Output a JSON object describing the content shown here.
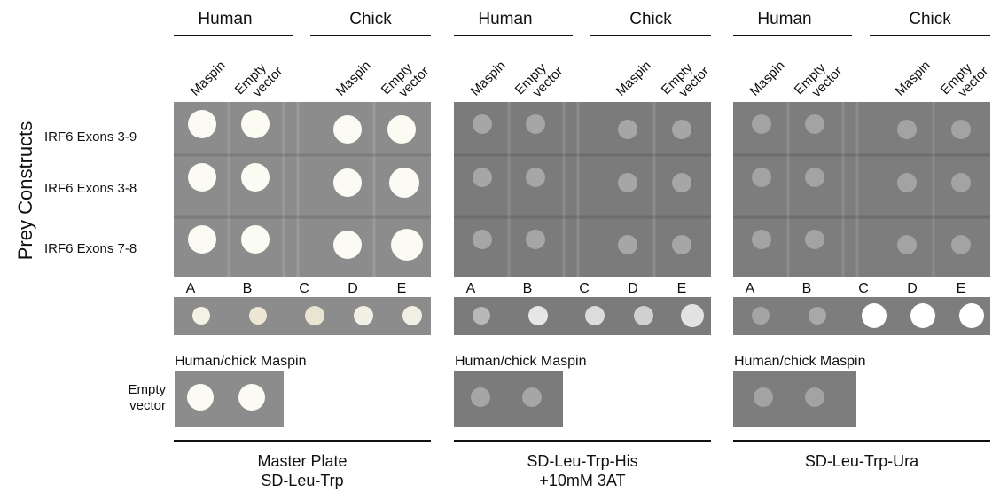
{
  "row_axis_label": "Prey Constructs",
  "row_labels": [
    "IRF6 Exons 3-9",
    "IRF6 Exons 3-8",
    "IRF6 Exons 7-8"
  ],
  "empty_vector_label": [
    "Empty",
    "vector"
  ],
  "panels": [
    {
      "groups": [
        "Human",
        "Chick"
      ],
      "columns": [
        [
          "Maspin"
        ],
        [
          "Empty",
          "vector"
        ],
        [
          "Maspin"
        ],
        [
          "Empty",
          "vector"
        ]
      ],
      "letters": [
        "A",
        "B",
        "C",
        "D",
        "E"
      ],
      "control_label": "Human/chick Maspin",
      "plate_name": [
        "Master Plate",
        "SD-Leu-Trp"
      ]
    },
    {
      "groups": [
        "Human",
        "Chick"
      ],
      "columns": [
        [
          "Maspin"
        ],
        [
          "Empty",
          "vector"
        ],
        [
          "Maspin"
        ],
        [
          "Empty",
          "vector"
        ]
      ],
      "letters": [
        "A",
        "B",
        "C",
        "D",
        "E"
      ],
      "control_label": "Human/chick Maspin",
      "plate_name": [
        "SD-Leu-Trp-His",
        "+10mM 3AT"
      ]
    },
    {
      "groups": [
        "Human",
        "Chick"
      ],
      "columns": [
        [
          "Maspin"
        ],
        [
          "Empty",
          "vector"
        ],
        [
          "Maspin"
        ],
        [
          "Empty",
          "vector"
        ]
      ],
      "letters": [
        "A",
        "B",
        "C",
        "D",
        "E"
      ],
      "control_label": "Human/chick Maspin",
      "plate_name": [
        "SD-Leu-Trp-Ura"
      ]
    }
  ]
}
